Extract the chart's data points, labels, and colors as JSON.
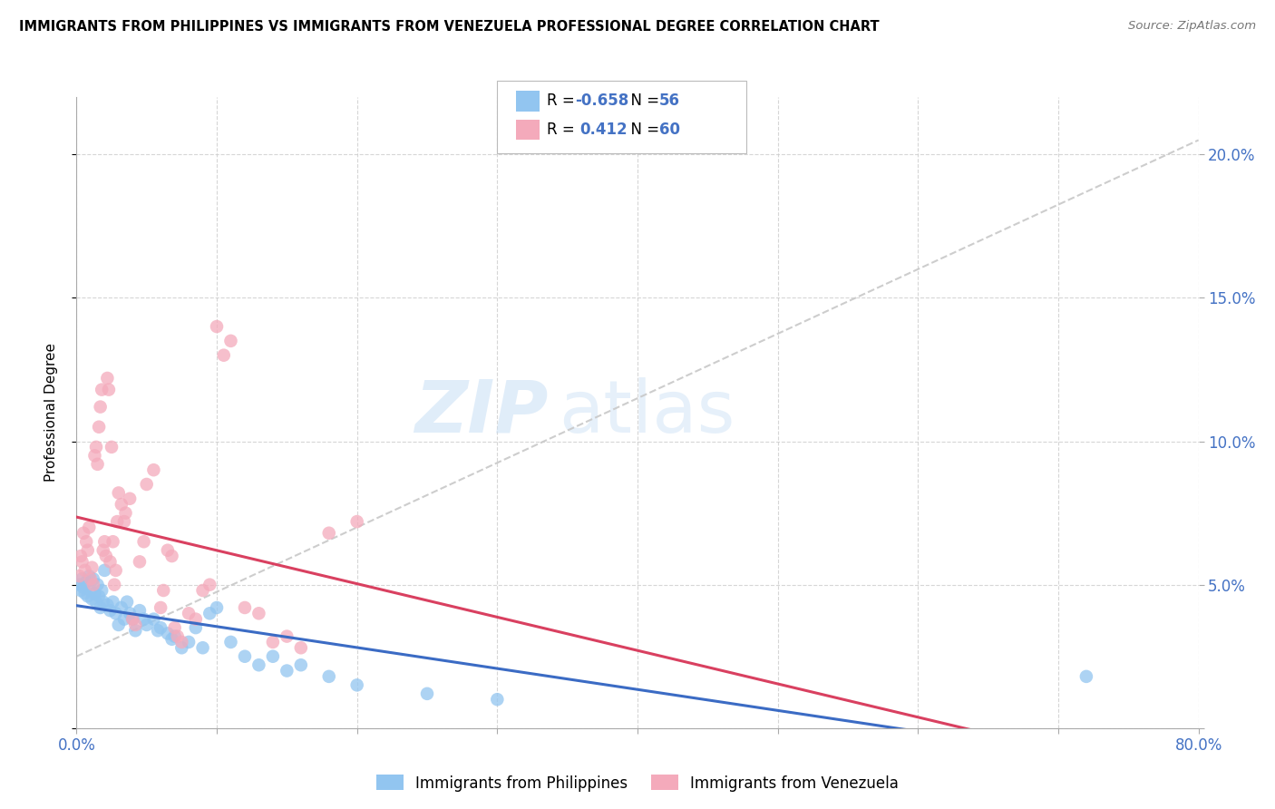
{
  "title": "IMMIGRANTS FROM PHILIPPINES VS IMMIGRANTS FROM VENEZUELA PROFESSIONAL DEGREE CORRELATION CHART",
  "source": "Source: ZipAtlas.com",
  "ylabel": "Professional Degree",
  "watermark_zip": "ZIP",
  "watermark_atlas": "atlas",
  "xlim": [
    0.0,
    0.8
  ],
  "ylim": [
    0.0,
    0.22
  ],
  "legend1_label": "Immigrants from Philippines",
  "legend2_label": "Immigrants from Venezuela",
  "r1": -0.658,
  "n1": 56,
  "r2": 0.412,
  "n2": 60,
  "color_blue": "#92C5F0",
  "color_pink": "#F4AABB",
  "color_blue_line": "#3B6BC4",
  "color_pink_line": "#D94060",
  "color_diag_line": "#C8C8C8",
  "philippines_x": [
    0.002,
    0.003,
    0.004,
    0.005,
    0.006,
    0.007,
    0.008,
    0.009,
    0.01,
    0.011,
    0.012,
    0.013,
    0.014,
    0.015,
    0.016,
    0.017,
    0.018,
    0.019,
    0.02,
    0.022,
    0.024,
    0.026,
    0.028,
    0.03,
    0.032,
    0.034,
    0.036,
    0.038,
    0.04,
    0.042,
    0.045,
    0.048,
    0.05,
    0.055,
    0.058,
    0.06,
    0.065,
    0.068,
    0.07,
    0.075,
    0.08,
    0.085,
    0.09,
    0.095,
    0.1,
    0.11,
    0.12,
    0.13,
    0.14,
    0.15,
    0.16,
    0.18,
    0.2,
    0.25,
    0.3,
    0.72
  ],
  "philippines_y": [
    0.05,
    0.048,
    0.052,
    0.049,
    0.047,
    0.051,
    0.046,
    0.053,
    0.048,
    0.045,
    0.052,
    0.047,
    0.044,
    0.05,
    0.046,
    0.042,
    0.048,
    0.044,
    0.055,
    0.043,
    0.041,
    0.044,
    0.04,
    0.036,
    0.042,
    0.038,
    0.044,
    0.04,
    0.038,
    0.034,
    0.041,
    0.038,
    0.036,
    0.038,
    0.034,
    0.035,
    0.033,
    0.031,
    0.032,
    0.028,
    0.03,
    0.035,
    0.028,
    0.04,
    0.042,
    0.03,
    0.025,
    0.022,
    0.025,
    0.02,
    0.022,
    0.018,
    0.015,
    0.012,
    0.01,
    0.018
  ],
  "venezuela_x": [
    0.002,
    0.003,
    0.004,
    0.005,
    0.006,
    0.007,
    0.008,
    0.009,
    0.01,
    0.011,
    0.012,
    0.013,
    0.014,
    0.015,
    0.016,
    0.017,
    0.018,
    0.019,
    0.02,
    0.021,
    0.022,
    0.023,
    0.024,
    0.025,
    0.026,
    0.027,
    0.028,
    0.029,
    0.03,
    0.032,
    0.034,
    0.035,
    0.038,
    0.04,
    0.042,
    0.045,
    0.048,
    0.05,
    0.055,
    0.06,
    0.062,
    0.065,
    0.068,
    0.07,
    0.072,
    0.075,
    0.08,
    0.085,
    0.09,
    0.095,
    0.1,
    0.105,
    0.11,
    0.12,
    0.13,
    0.14,
    0.15,
    0.16,
    0.18,
    0.2
  ],
  "venezuela_y": [
    0.053,
    0.06,
    0.058,
    0.068,
    0.055,
    0.065,
    0.062,
    0.07,
    0.052,
    0.056,
    0.05,
    0.095,
    0.098,
    0.092,
    0.105,
    0.112,
    0.118,
    0.062,
    0.065,
    0.06,
    0.122,
    0.118,
    0.058,
    0.098,
    0.065,
    0.05,
    0.055,
    0.072,
    0.082,
    0.078,
    0.072,
    0.075,
    0.08,
    0.038,
    0.036,
    0.058,
    0.065,
    0.085,
    0.09,
    0.042,
    0.048,
    0.062,
    0.06,
    0.035,
    0.032,
    0.03,
    0.04,
    0.038,
    0.048,
    0.05,
    0.14,
    0.13,
    0.135,
    0.042,
    0.04,
    0.03,
    0.032,
    0.028,
    0.068,
    0.072
  ],
  "diag_line_x": [
    0.0,
    0.8
  ],
  "diag_line_y": [
    0.025,
    0.205
  ]
}
